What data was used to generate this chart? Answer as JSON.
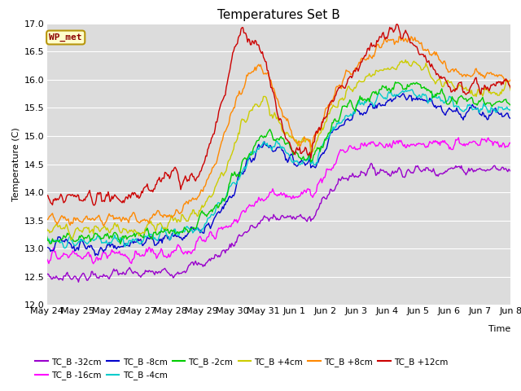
{
  "title": "Temperatures Set B",
  "xlabel": "Time",
  "ylabel": "Temperature (C)",
  "ylim": [
    12.0,
    17.0
  ],
  "yticks": [
    12.0,
    12.5,
    13.0,
    13.5,
    14.0,
    14.5,
    15.0,
    15.5,
    16.0,
    16.5,
    17.0
  ],
  "background_color": "#dcdcdc",
  "wp_met_label": "WP_met",
  "wp_met_color": "#8b0000",
  "wp_met_bg": "#ffffcc",
  "wp_met_border": "#b8960c",
  "series_colors": {
    "TC_B -32cm": "#9900cc",
    "TC_B -16cm": "#ff00ff",
    "TC_B -8cm": "#0000cc",
    "TC_B -4cm": "#00cccc",
    "TC_B -2cm": "#00cc00",
    "TC_B +4cm": "#cccc00",
    "TC_B +8cm": "#ff8800",
    "TC_B +12cm": "#cc0000"
  },
  "n_points": 500,
  "xtick_labels": [
    "May 24",
    "May 25",
    "May 26",
    "May 27",
    "May 28",
    "May 29",
    "May 30",
    "May 31",
    "Jun 1",
    "Jun 2",
    "Jun 3",
    "Jun 4",
    "Jun 5",
    "Jun 6",
    "Jun 7",
    "Jun 8"
  ],
  "title_fontsize": 11,
  "label_fontsize": 8,
  "tick_fontsize": 8
}
